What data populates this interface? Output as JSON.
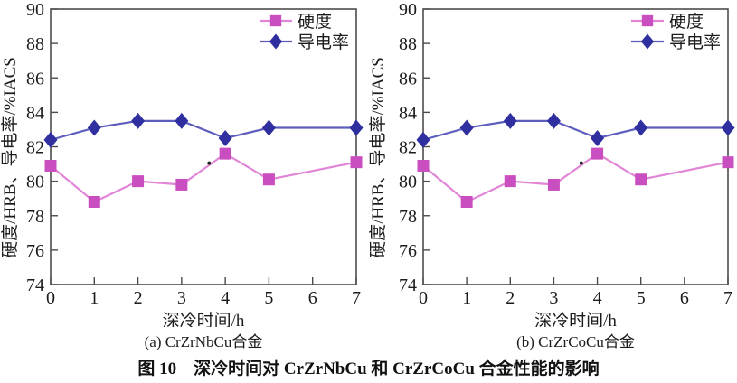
{
  "figure": {
    "caption": "图 10　深冷时间对 CrZrNbCu 和 CrZrCoCu 合金性能的影响"
  },
  "chart_data": [
    {
      "type": "line",
      "panel": "a",
      "title": "(a) CrZrNbCu合金",
      "xlabel": "深冷时间/h",
      "ylabel": "硬度/HRB、导电率/%IACS",
      "xlim": [
        0,
        7
      ],
      "ylim": [
        74,
        90
      ],
      "xticks": [
        0,
        1,
        2,
        3,
        4,
        5,
        6,
        7
      ],
      "yticks": [
        74,
        76,
        78,
        80,
        82,
        84,
        86,
        88,
        90
      ],
      "grid": false,
      "legend_position": "top-right",
      "x": [
        0,
        1,
        2,
        3,
        4,
        5,
        7
      ],
      "series": [
        {
          "key": "hardness",
          "name": "硬度",
          "marker": "square",
          "marker_color": "#c94fc0",
          "line_color": "#e186d6",
          "values": [
            80.9,
            78.8,
            80.0,
            79.8,
            81.6,
            80.1,
            81.1
          ]
        },
        {
          "key": "conductivity",
          "name": "导电率",
          "marker": "diamond",
          "marker_color": "#2f2fa0",
          "line_color": "#5d5dbd",
          "values": [
            82.4,
            83.1,
            83.5,
            83.5,
            82.5,
            83.1,
            83.1
          ]
        }
      ],
      "artifact_dot": {
        "x": 3.63,
        "y": 81.05
      }
    },
    {
      "type": "line",
      "panel": "b",
      "title": "(b) CrZrCoCu合金",
      "xlabel": "深冷时间/h",
      "ylabel": "硬度/HRB、导电率/%IACS",
      "xlim": [
        0,
        7
      ],
      "ylim": [
        74,
        90
      ],
      "xticks": [
        0,
        1,
        2,
        3,
        4,
        5,
        6,
        7
      ],
      "yticks": [
        74,
        76,
        78,
        80,
        82,
        84,
        86,
        88,
        90
      ],
      "grid": false,
      "legend_position": "top-right",
      "x": [
        0,
        1,
        2,
        3,
        4,
        5,
        7
      ],
      "series": [
        {
          "key": "hardness",
          "name": "硬度",
          "marker": "square",
          "marker_color": "#c94fc0",
          "line_color": "#e186d6",
          "values": [
            80.9,
            78.8,
            80.0,
            79.8,
            81.6,
            80.1,
            81.1
          ]
        },
        {
          "key": "conductivity",
          "name": "导电率",
          "marker": "diamond",
          "marker_color": "#2f2fa0",
          "line_color": "#5d5dbd",
          "values": [
            82.4,
            83.1,
            83.5,
            83.5,
            82.5,
            83.1,
            83.1
          ]
        }
      ],
      "artifact_dot": {
        "x": 3.63,
        "y": 81.05
      }
    }
  ],
  "style_colors": {
    "frame": "#4c4c4c",
    "text": "#1c1c1c",
    "artifact": "#222222"
  }
}
